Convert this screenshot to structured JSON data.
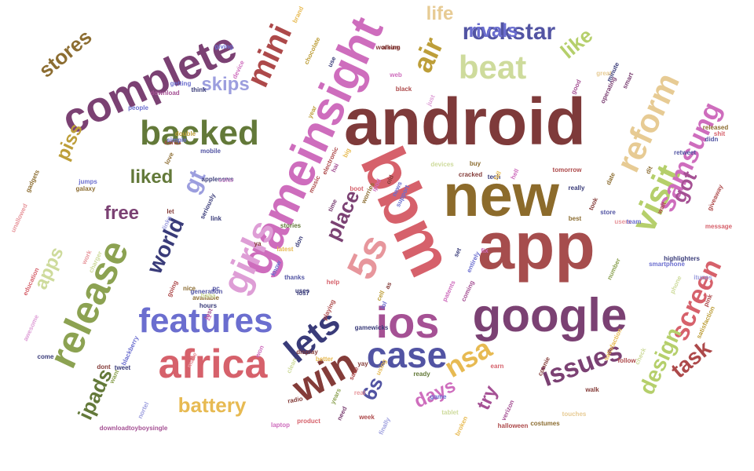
{
  "words": [
    {
      "text": "android",
      "color": "#7e3a3a"
    },
    {
      "text": "app",
      "color": "#a64d4d"
    },
    {
      "text": "new",
      "color": "#8c6b2b"
    },
    {
      "text": "google",
      "color": "#7b4173"
    },
    {
      "text": "ios",
      "color": "#a55194"
    },
    {
      "text": "bbm",
      "color": "#d6616b"
    },
    {
      "text": "gameinsight",
      "color": "#ce6dbd"
    },
    {
      "text": "complete",
      "color": "#7b4173"
    },
    {
      "text": "africa",
      "color": "#d6616b"
    },
    {
      "text": "features",
      "color": "#6b6ecf"
    },
    {
      "text": "backed",
      "color": "#637939"
    },
    {
      "text": "release",
      "color": "#8ca252"
    },
    {
      "text": "girls",
      "color": "#de9ed6"
    },
    {
      "text": "case",
      "color": "#5254a3"
    },
    {
      "text": "win",
      "color": "#843c39"
    },
    {
      "text": "visit",
      "color": "#b5cf6b"
    },
    {
      "text": "reform",
      "color": "#e7cb94"
    },
    {
      "text": "lets",
      "color": "#393b79"
    },
    {
      "text": "5s",
      "color": "#e7969c"
    },
    {
      "text": "mini",
      "color": "#ad494a"
    },
    {
      "text": "beat",
      "color": "#cedb9c"
    },
    {
      "text": "air",
      "color": "#bd9e39"
    },
    {
      "text": "rockstar",
      "color": "#5254a3"
    },
    {
      "text": "samsung",
      "color": "#ce6dbd"
    },
    {
      "text": "screen",
      "color": "#d6616b"
    },
    {
      "text": "nsa",
      "color": "#e7ba52"
    },
    {
      "text": "issues",
      "color": "#7b4173"
    },
    {
      "text": "design",
      "color": "#b5cf6b"
    },
    {
      "text": "task",
      "color": "#ad494a"
    },
    {
      "text": "battery",
      "color": "#e7ba52"
    },
    {
      "text": "ipads",
      "color": "#637939"
    },
    {
      "text": "days",
      "color": "#ce6dbd"
    },
    {
      "text": "try",
      "color": "#a55194"
    },
    {
      "text": "gt",
      "color": "#9c9ede"
    },
    {
      "text": "world",
      "color": "#393b79"
    },
    {
      "text": "place",
      "color": "#7b4173"
    },
    {
      "text": "got",
      "color": "#a55194"
    },
    {
      "text": "like",
      "color": "#b5cf6b"
    },
    {
      "text": "rivals",
      "color": "#6b6ecf"
    },
    {
      "text": "life",
      "color": "#e7cb94"
    },
    {
      "text": "stores",
      "color": "#8c6d31"
    },
    {
      "text": "piss",
      "color": "#bd9e39"
    },
    {
      "text": "skips",
      "color": "#9c9ede"
    },
    {
      "text": "liked",
      "color": "#637939"
    },
    {
      "text": "free",
      "color": "#7b4173"
    },
    {
      "text": "apps",
      "color": "#cedb9c"
    },
    {
      "text": "6s",
      "color": "#5254a3"
    },
    {
      "text": "halloween",
      "color": "#ad494a"
    },
    {
      "text": "costumes",
      "color": "#8c6d31"
    },
    {
      "text": "touches",
      "color": "#e7cb94"
    },
    {
      "text": "tablet",
      "color": "#cedb9c"
    },
    {
      "text": "finally",
      "color": "#9c9ede"
    },
    {
      "text": "week",
      "color": "#ad494a"
    },
    {
      "text": "product",
      "color": "#d6616b"
    },
    {
      "text": "laptop",
      "color": "#ce6dbd"
    },
    {
      "text": "radio",
      "color": "#843c39"
    },
    {
      "text": "downloadtoyboysingle",
      "color": "#a55194"
    },
    {
      "text": "education",
      "color": "#d6616b"
    },
    {
      "text": "awesome",
      "color": "#de9ed6"
    },
    {
      "text": "gadgets",
      "color": "#8c6d31"
    },
    {
      "text": "unallowed",
      "color": "#e7969c"
    },
    {
      "text": "brand",
      "color": "#e7ba52"
    },
    {
      "text": "chocolate",
      "color": "#bd9e39"
    },
    {
      "text": "album",
      "color": "#843c39"
    },
    {
      "text": "itunes",
      "color": "#9c9ede"
    },
    {
      "text": "smartphone",
      "color": "#6b6ecf"
    },
    {
      "text": "highlighters",
      "color": "#393b79"
    },
    {
      "text": "message",
      "color": "#d6616b"
    },
    {
      "text": "giveaway",
      "color": "#ad494a"
    },
    {
      "text": "released",
      "color": "#8c6d31"
    },
    {
      "text": "satisfaction",
      "color": "#bd9e39"
    },
    {
      "text": "operating",
      "color": "#7b4173"
    },
    {
      "text": "tomorrow",
      "color": "#ad494a"
    },
    {
      "text": "cracked",
      "color": "#843c39"
    },
    {
      "text": "devices",
      "color": "#cedb9c"
    },
    {
      "text": "tech",
      "color": "#393b79"
    },
    {
      "text": "electronic",
      "color": "#ad494a"
    },
    {
      "text": "download",
      "color": "#a55194"
    },
    {
      "text": "people",
      "color": "#6b6ecf"
    },
    {
      "text": "mobile",
      "color": "#5254a3"
    },
    {
      "text": "blackberry",
      "color": "#6b6ecf"
    },
    {
      "text": "nortel",
      "color": "#9c9ede"
    },
    {
      "text": "tweet",
      "color": "#393b79"
    },
    {
      "text": "display",
      "color": "#843c39"
    },
    {
      "text": "stories",
      "color": "#637939"
    },
    {
      "text": "seriously",
      "color": "#393b79"
    },
    {
      "text": "patents",
      "color": "#ce6dbd"
    },
    {
      "text": "generation",
      "color": "#5254a3"
    },
    {
      "text": "available",
      "color": "#8c6d31"
    },
    {
      "text": "playing",
      "color": "#ad494a"
    },
    {
      "text": "coming",
      "color": "#a55194"
    },
    {
      "text": "support",
      "color": "#6b6ecf"
    },
    {
      "text": "worries",
      "color": "#8c6d31"
    },
    {
      "text": "latest",
      "color": "#e7ba52"
    },
    {
      "text": "charger",
      "color": "#cedb9c"
    },
    {
      "text": "gamewicks",
      "color": "#393b79"
    },
    {
      "text": "verizon",
      "color": "#a55194"
    },
    {
      "text": "working",
      "color": "#843c39"
    },
    {
      "text": "getting",
      "color": "#6b6ecf"
    },
    {
      "text": "double",
      "color": "#bd9e39"
    },
    {
      "text": "think",
      "color": "#393b79"
    },
    {
      "text": "galaxy",
      "color": "#8c6d31"
    },
    {
      "text": "jumps",
      "color": "#6b6ecf"
    },
    {
      "text": "applenews",
      "color": "#393b79"
    },
    {
      "text": "color",
      "color": "#de9ed6"
    },
    {
      "text": "ready",
      "color": "#637939"
    },
    {
      "text": "broken",
      "color": "#e7ba52"
    },
    {
      "text": "connie",
      "color": "#843c39"
    },
    {
      "text": "satisfaction",
      "color": "#e7ba52"
    },
    {
      "text": "follow",
      "color": "#ad494a"
    },
    {
      "text": "check",
      "color": "#cedb9c"
    },
    {
      "text": "number",
      "color": "#8ca252"
    },
    {
      "text": "retweet",
      "color": "#5254a3"
    },
    {
      "text": "smart",
      "color": "#7b4173"
    },
    {
      "text": "great",
      "color": "#e7cb94"
    },
    {
      "text": "minute",
      "color": "#393b79"
    },
    {
      "text": "users",
      "color": "#e7969c"
    },
    {
      "text": "team",
      "color": "#6b6ecf"
    },
    {
      "text": "wait",
      "color": "#ad494a"
    },
    {
      "text": "really",
      "color": "#393b79"
    },
    {
      "text": "best",
      "color": "#8c6d31"
    },
    {
      "text": "took",
      "color": "#843c39"
    },
    {
      "text": "date",
      "color": "#8c6d31"
    },
    {
      "text": "store",
      "color": "#5254a3"
    },
    {
      "text": "hell",
      "color": "#ce6dbd"
    },
    {
      "text": "links",
      "color": "#9c9ede"
    },
    {
      "text": "cards",
      "color": "#ad494a"
    },
    {
      "text": "simple",
      "color": "#6b6ecf"
    },
    {
      "text": "love",
      "color": "#8c6d31"
    },
    {
      "text": "make",
      "color": "#e7969c"
    },
    {
      "text": "come",
      "color": "#393b79"
    },
    {
      "text": "dont",
      "color": "#843c39"
    },
    {
      "text": "want",
      "color": "#8ca252"
    },
    {
      "text": "work",
      "color": "#e7969c"
    },
    {
      "text": "going",
      "color": "#ad494a"
    },
    {
      "text": "nice",
      "color": "#8c6d31"
    },
    {
      "text": "hours",
      "color": "#393b79"
    },
    {
      "text": "lost",
      "color": "#a55194"
    },
    {
      "text": "thanks",
      "color": "#5254a3"
    },
    {
      "text": "uses",
      "color": "#393b79"
    },
    {
      "text": "music",
      "color": "#ad494a"
    },
    {
      "text": "time",
      "color": "#7b4173"
    },
    {
      "text": "help",
      "color": "#d6616b"
    },
    {
      "text": "yay",
      "color": "#843c39"
    },
    {
      "text": "using",
      "color": "#e7ba52"
    },
    {
      "text": "fix",
      "color": "#ce6dbd"
    },
    {
      "text": "set",
      "color": "#393b79"
    },
    {
      "text": "earn",
      "color": "#d6616b"
    },
    {
      "text": "save",
      "color": "#ad494a"
    },
    {
      "text": "won",
      "color": "#ce6dbd"
    },
    {
      "text": "better",
      "color": "#e7ba52"
    },
    {
      "text": "clean",
      "color": "#cedb9c"
    },
    {
      "text": "game",
      "color": "#6b6ecf"
    },
    {
      "text": "need",
      "color": "#7b4173"
    },
    {
      "text": "years",
      "color": "#8ca252"
    },
    {
      "text": "walk",
      "color": "#843c39"
    },
    {
      "text": "entirely",
      "color": "#6b6ecf"
    },
    {
      "text": "ios7",
      "color": "#393b79"
    },
    {
      "text": "pc",
      "color": "#5254a3"
    },
    {
      "text": "11",
      "color": "#ce6dbd"
    },
    {
      "text": "as",
      "color": "#843c39"
    },
    {
      "text": "cell",
      "color": "#bd9e39"
    },
    {
      "text": "real",
      "color": "#e7969c"
    },
    {
      "text": "lol",
      "color": "#6b6ecf"
    },
    {
      "text": "don",
      "color": "#393b79"
    },
    {
      "text": "boot",
      "color": "#d6616b"
    },
    {
      "text": "phone",
      "color": "#cedb9c"
    },
    {
      "text": "pink",
      "color": "#ad494a"
    },
    {
      "text": "web",
      "color": "#ce6dbd"
    },
    {
      "text": "news",
      "color": "#6b6ecf"
    },
    {
      "text": "ipod",
      "color": "#ce6dbd"
    },
    {
      "text": "old",
      "color": "#843c39"
    },
    {
      "text": "fall",
      "color": "#e7ba52"
    },
    {
      "text": "buy",
      "color": "#8c6d31"
    },
    {
      "text": "good",
      "color": "#a55194"
    },
    {
      "text": "year",
      "color": "#bd9e39"
    },
    {
      "text": "giving",
      "color": "#6b6ecf"
    },
    {
      "text": "device",
      "color": "#ce6dbd"
    },
    {
      "text": "use",
      "color": "#393b79"
    },
    {
      "text": "black",
      "color": "#ad494a"
    },
    {
      "text": "just",
      "color": "#de9ed6"
    },
    {
      "text": "ya",
      "color": "#843c39"
    },
    {
      "text": "dit",
      "color": "#8c6d31"
    },
    {
      "text": "didn",
      "color": "#5254a3"
    },
    {
      "text": "shit",
      "color": "#d6616b"
    },
    {
      "text": "link",
      "color": "#393b79"
    },
    {
      "text": "let",
      "color": "#843c39"
    },
    {
      "text": "know",
      "color": "#6b6ecf"
    },
    {
      "text": "haha",
      "color": "#cedb9c"
    },
    {
      "text": "hai",
      "color": "#a55194"
    },
    {
      "text": "big",
      "color": "#e7ba52"
    }
  ]
}
